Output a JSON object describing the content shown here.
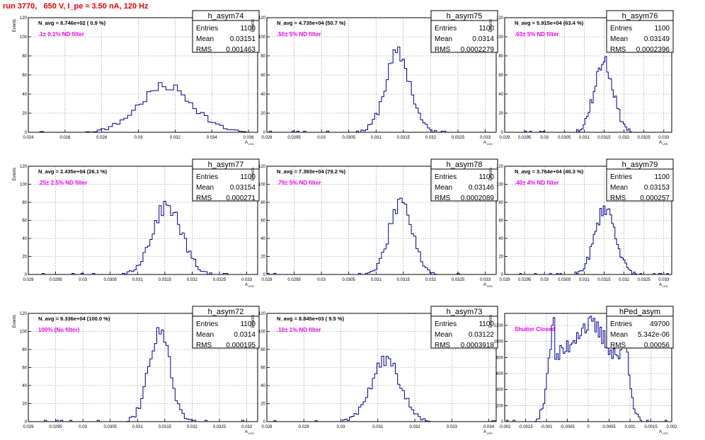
{
  "page": {
    "title": "run 3770,   650 V, I_pe ≈ 3.50 nA, 120 Hz"
  },
  "style": {
    "hist_color": "#000099",
    "note_color": "#ee00ee",
    "title_color": "#ee0000",
    "grid_color": "#808080"
  },
  "chart_data": [
    {
      "type": "histogram",
      "name": "h_asym74",
      "ylabel": "Events",
      "xlabel": "A",
      "xlabel_sub": "LED",
      "xlim": [
        0.024,
        0.0365
      ],
      "ylim": [
        0,
        120
      ],
      "xticks": [
        0.024,
        0.026,
        0.028,
        0.03,
        0.032,
        0.034,
        0.036
      ],
      "xtick_labels": [
        "0.024",
        "0.026",
        "0.028",
        "0.03",
        "0.032",
        "0.034",
        "0.036"
      ],
      "yticks": [
        0,
        20,
        40,
        60,
        80,
        100,
        120
      ],
      "ytick_labels": [
        "0",
        "20",
        "40",
        "60",
        "80",
        "100",
        "120"
      ],
      "stats": {
        "title": "h_asym74",
        "rows": [
          [
            "Entries",
            "1100"
          ],
          [
            "Mean",
            "0.03151"
          ],
          [
            "RMS",
            "0.001463"
          ]
        ]
      },
      "navg": "N_avg = 8.746e+02 ( 0.9 %)",
      "note": ".1± 0.1% ND filter",
      "mean": 0.03151,
      "rms": 0.001463,
      "peak": 48,
      "bins": 60,
      "seed": 7
    },
    {
      "type": "histogram",
      "name": "h_asym75",
      "ylabel": "Events",
      "xlabel": "A",
      "xlabel_sub": "LED",
      "xlim": [
        0.029,
        0.0332
      ],
      "ylim": [
        0,
        120
      ],
      "xticks": [
        0.029,
        0.0295,
        0.03,
        0.0305,
        0.031,
        0.0315,
        0.032,
        0.0325,
        0.033
      ],
      "xtick_labels": [
        "0.029",
        "0.0295",
        "0.03",
        "0.0305",
        "0.031",
        "0.0315",
        "0.032",
        "0.0325",
        "0.033"
      ],
      "yticks": [
        0,
        20,
        40,
        60,
        80,
        100,
        120
      ],
      "ytick_labels": [
        "0",
        "20",
        "40",
        "60",
        "80",
        "100",
        "120"
      ],
      "stats": {
        "title": "h_asym75",
        "rows": [
          [
            "Entries",
            "1100"
          ],
          [
            "Mean",
            "0.0314"
          ],
          [
            "RMS",
            "0.0002279"
          ]
        ]
      },
      "navg": "N_avg = 4.735e+04 (50.7 %)",
      "note": ".50± 5% ND filter",
      "mean": 0.0314,
      "rms": 0.0002279,
      "peak": 82,
      "bins": 100,
      "seed": 11
    },
    {
      "type": "histogram",
      "name": "h_asym76",
      "ylabel": "Events",
      "xlabel": "A",
      "xlabel_sub": "LED",
      "xlim": [
        0.029,
        0.0332
      ],
      "ylim": [
        0,
        120
      ],
      "xticks": [
        0.029,
        0.0295,
        0.03,
        0.0305,
        0.031,
        0.0315,
        0.032,
        0.0325,
        0.033
      ],
      "xtick_labels": [
        "0.029",
        "0.0295",
        "0.03",
        "0.0305",
        "0.031",
        "0.0315",
        "0.032",
        "0.0325",
        "0.033"
      ],
      "yticks": [
        0,
        20,
        40,
        60,
        80,
        100,
        120
      ],
      "ytick_labels": [
        "0",
        "20",
        "40",
        "60",
        "80",
        "100",
        "120"
      ],
      "stats": {
        "title": "h_asym76",
        "rows": [
          [
            "Entries",
            "1100"
          ],
          [
            "Mean",
            "0.03149"
          ],
          [
            "RMS",
            "0.0002396"
          ]
        ]
      },
      "navg": "N_avg = 5.915e+04 (63.4 %)",
      "note": ".63± 5% ND filter",
      "mean": 0.03149,
      "rms": 0.0002396,
      "peak": 74,
      "bins": 100,
      "seed": 13
    },
    {
      "type": "histogram",
      "name": "h_asym77",
      "ylabel": "Events",
      "xlabel": "A",
      "xlabel_sub": "LED",
      "xlim": [
        0.029,
        0.0332
      ],
      "ylim": [
        0,
        120
      ],
      "xticks": [
        0.029,
        0.0295,
        0.03,
        0.0305,
        0.031,
        0.0315,
        0.032,
        0.0325,
        0.033
      ],
      "xtick_labels": [
        "0.029",
        "0.0295",
        "0.03",
        "0.0305",
        "0.031",
        "0.0315",
        "0.032",
        "0.0325",
        "0.033"
      ],
      "yticks": [
        0,
        20,
        40,
        60,
        80,
        100,
        120
      ],
      "ytick_labels": [
        "0",
        "20",
        "40",
        "60",
        "80",
        "100",
        "120"
      ],
      "stats": {
        "title": "h_asym77",
        "rows": [
          [
            "Entries",
            "1100"
          ],
          [
            "Mean",
            "0.03154"
          ],
          [
            "RMS",
            "0.000271"
          ]
        ]
      },
      "navg": "N_avg = 2.435e+04 (26.1 %)",
      "note": ".25± 2.5% ND filter",
      "mean": 0.03154,
      "rms": 0.000271,
      "peak": 76,
      "bins": 100,
      "seed": 17
    },
    {
      "type": "histogram",
      "name": "h_asym78",
      "ylabel": "Events",
      "xlabel": "A",
      "xlabel_sub": "LED",
      "xlim": [
        0.029,
        0.0332
      ],
      "ylim": [
        0,
        120
      ],
      "xticks": [
        0.029,
        0.0295,
        0.03,
        0.0305,
        0.031,
        0.0315,
        0.032,
        0.0325,
        0.033
      ],
      "xtick_labels": [
        "0.029",
        "0.0295",
        "0.03",
        "0.0305",
        "0.031",
        "0.0315",
        "0.032",
        "0.0325",
        "0.033"
      ],
      "yticks": [
        0,
        20,
        40,
        60,
        80,
        100,
        120
      ],
      "ytick_labels": [
        "0",
        "20",
        "40",
        "60",
        "80",
        "100",
        "120"
      ],
      "stats": {
        "title": "h_asym78",
        "rows": [
          [
            "Entries",
            "1100"
          ],
          [
            "Mean",
            "0.03146"
          ],
          [
            "RMS",
            "0.0002089"
          ]
        ]
      },
      "navg": "N_avg = 7.393e+04 (79.2 %)",
      "note": ".79± 5% ND filter",
      "mean": 0.03146,
      "rms": 0.0002089,
      "peak": 83,
      "bins": 100,
      "seed": 19
    },
    {
      "type": "histogram",
      "name": "h_asym79",
      "ylabel": "Events",
      "xlabel": "A",
      "xlabel_sub": "LED",
      "xlim": [
        0.029,
        0.0332
      ],
      "ylim": [
        0,
        120
      ],
      "xticks": [
        0.029,
        0.0295,
        0.03,
        0.0305,
        0.031,
        0.0315,
        0.032,
        0.0325,
        0.033
      ],
      "xtick_labels": [
        "0.029",
        "0.0295",
        "0.03",
        "0.0305",
        "0.031",
        "0.0315",
        "0.032",
        "0.0325",
        "0.033"
      ],
      "yticks": [
        0,
        20,
        40,
        60,
        80,
        100,
        120
      ],
      "ytick_labels": [
        "0",
        "20",
        "40",
        "60",
        "80",
        "100",
        "120"
      ],
      "stats": {
        "title": "h_asym79",
        "rows": [
          [
            "Entries",
            "1100"
          ],
          [
            "Mean",
            "0.03153"
          ],
          [
            "RMS",
            "0.000257"
          ]
        ]
      },
      "navg": "N_avg = 3.764e+04 (40.3 %)",
      "note": ".40± 4% ND filter",
      "mean": 0.03153,
      "rms": 0.000257,
      "peak": 74,
      "bins": 100,
      "seed": 23
    },
    {
      "type": "histogram",
      "name": "h_asym72",
      "ylabel": "Events",
      "xlabel": "A",
      "xlabel_sub": "LED",
      "xlim": [
        0.029,
        0.0332
      ],
      "ylim": [
        0,
        120
      ],
      "xticks": [
        0.029,
        0.0295,
        0.03,
        0.0305,
        0.031,
        0.0315,
        0.032,
        0.0325,
        0.033
      ],
      "xtick_labels": [
        "0.029",
        "0.0295",
        "0.03",
        "0.0305",
        "0.031",
        "0.0315",
        "0.032",
        "0.0325",
        "0.033"
      ],
      "yticks": [
        0,
        20,
        40,
        60,
        80,
        100,
        120
      ],
      "ytick_labels": [
        "0",
        "20",
        "40",
        "60",
        "80",
        "100",
        "120"
      ],
      "stats": {
        "title": "h_asym72",
        "rows": [
          [
            "Entries",
            "1100"
          ],
          [
            "Mean",
            "0.0314"
          ],
          [
            "RMS",
            "0.000195"
          ]
        ]
      },
      "navg": "N_avg = 9.336e+04 (100.0 %)",
      "note": "100% (No filter)",
      "mean": 0.0314,
      "rms": 0.000195,
      "peak": 100,
      "bins": 100,
      "seed": 29
    },
    {
      "type": "histogram",
      "name": "h_asym73",
      "ylabel": "Events",
      "xlabel": "A",
      "xlabel_sub": "LED",
      "xlim": [
        0.028,
        0.0342
      ],
      "ylim": [
        0,
        120
      ],
      "xticks": [
        0.028,
        0.029,
        0.03,
        0.031,
        0.032,
        0.033,
        0.034
      ],
      "xtick_labels": [
        "0.028",
        "0.029",
        "0.03",
        "0.031",
        "0.032",
        "0.033",
        "0.034"
      ],
      "yticks": [
        0,
        20,
        40,
        60,
        80,
        100,
        120
      ],
      "ytick_labels": [
        "0",
        "20",
        "40",
        "60",
        "80",
        "100",
        "120"
      ],
      "stats": {
        "title": "h_asym73",
        "rows": [
          [
            "Entries",
            "1100"
          ],
          [
            "Mean",
            "0.03122"
          ],
          [
            "RMS",
            "0.0003918"
          ]
        ]
      },
      "navg": "N_avg = 8.845e+03 ( 9.5 %)",
      "note": ".10± 1% ND filter",
      "mean": 0.03122,
      "rms": 0.0003918,
      "peak": 68,
      "bins": 100,
      "seed": 31
    },
    {
      "type": "histogram",
      "name": "hPed_asym",
      "ylabel": "Events",
      "xlabel": "A",
      "xlabel_sub": "LED",
      "xlim": [
        -0.002,
        0.002
      ],
      "ylim": [
        0,
        1350
      ],
      "xticks": [
        -0.002,
        -0.0015,
        -0.001,
        -0.0005,
        0,
        0.0005,
        0.001,
        0.0015,
        0.002
      ],
      "xtick_labels": [
        "-0.002",
        "-0.0015",
        "-0.001",
        "-0.0005",
        "0",
        "0.0005",
        "0.001",
        "0.0015",
        "0.002"
      ],
      "yticks": [
        0,
        200,
        400,
        600,
        800,
        1000,
        1200
      ],
      "ytick_labels": [
        "0",
        "200",
        "400",
        "600",
        "800",
        "1000",
        "1200"
      ],
      "stats": {
        "title": "hPed_asym",
        "rows": [
          [
            "Entries",
            "49700"
          ],
          [
            "Mean",
            "5.342e-06"
          ],
          [
            "RMS",
            "0.00056"
          ]
        ]
      },
      "navg": "",
      "note": "Shutter Closed",
      "mean": 5.342e-06,
      "rms": 0.00056,
      "peak": 1200,
      "bins": 100,
      "seed": 37,
      "shape": "flat"
    }
  ]
}
